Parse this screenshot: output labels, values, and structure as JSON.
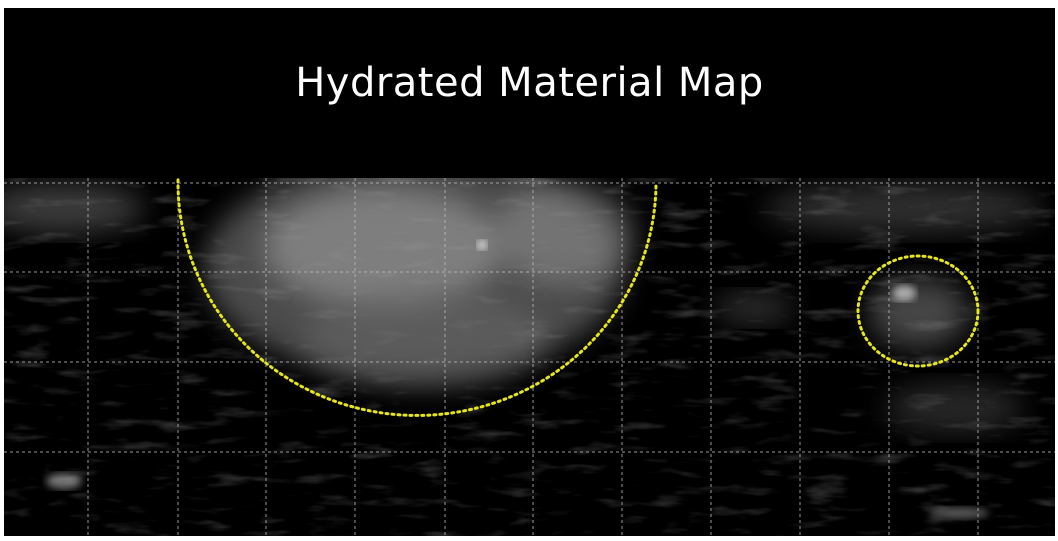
{
  "header": {
    "title": "Hydrated Material Map"
  }
}
